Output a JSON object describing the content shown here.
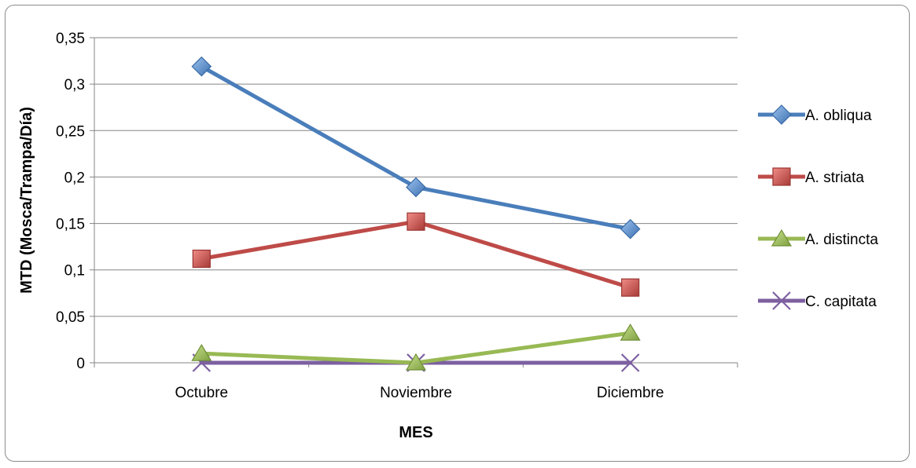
{
  "chart_data": {
    "type": "line",
    "title": "",
    "xlabel": "MES",
    "ylabel": "MTD (Mosca/Trampa/Día)",
    "categories": [
      "Octubre",
      "Noviembre",
      "Diciembre"
    ],
    "ylim": [
      0,
      0.35
    ],
    "yticks": [
      0,
      0.05,
      0.1,
      0.15,
      0.2,
      0.25,
      0.3,
      0.35
    ],
    "ytick_labels": [
      "0",
      "0,05",
      "0,1",
      "0,15",
      "0,2",
      "0,25",
      "0,3",
      "0,35"
    ],
    "grid": "horizontal",
    "legend": "right",
    "series": [
      {
        "name": "A. obliqua",
        "values": [
          0.319,
          0.189,
          0.144
        ],
        "color": "#4a7ebb",
        "marker": "diamond"
      },
      {
        "name": "A. striata",
        "values": [
          0.112,
          0.152,
          0.081
        ],
        "color": "#be4b48",
        "marker": "square"
      },
      {
        "name": "A. distincta",
        "values": [
          0.01,
          0.0,
          0.032
        ],
        "color": "#98b954",
        "marker": "triangle"
      },
      {
        "name": "C. capitata",
        "values": [
          0.0,
          0.0,
          0.0
        ],
        "color": "#7d60a0",
        "marker": "x"
      }
    ]
  }
}
